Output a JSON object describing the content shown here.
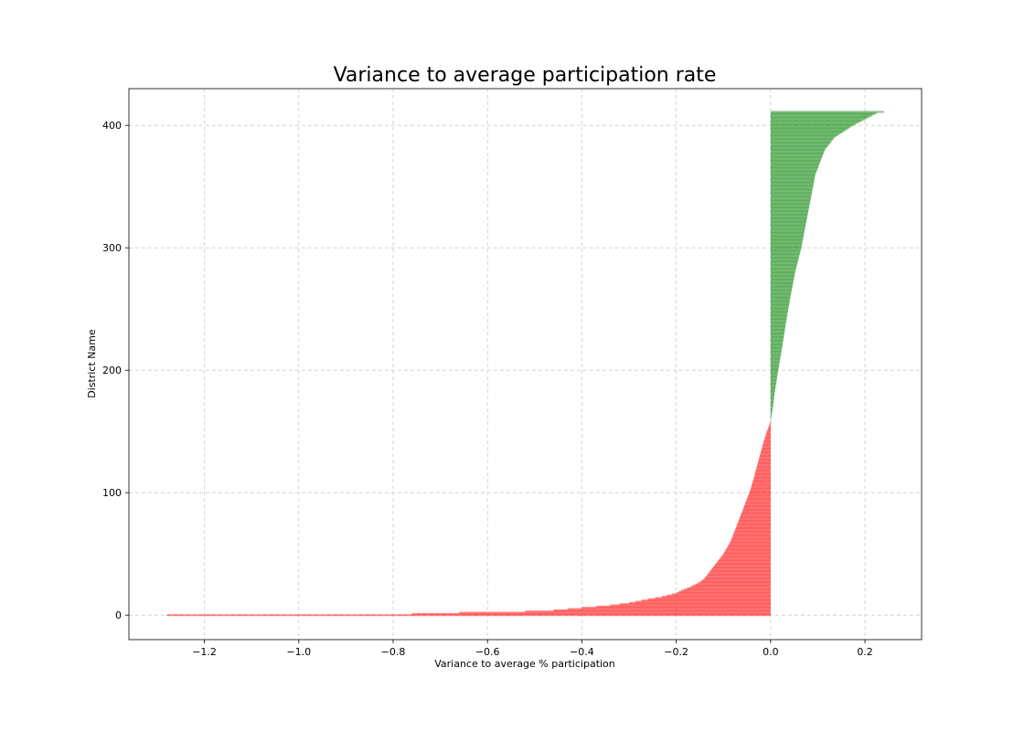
{
  "chart_data": {
    "type": "bar",
    "orientation": "horizontal",
    "title": "Variance to average participation rate",
    "xlabel": "Variance to average % participation",
    "ylabel": "District Name",
    "xlim": [
      -1.36,
      0.32
    ],
    "ylim": [
      -20,
      430
    ],
    "xticks": [
      -1.2,
      -1.0,
      -0.8,
      -0.6,
      -0.4,
      -0.2,
      0.0,
      0.2
    ],
    "xtick_labels": [
      "−1.2",
      "−1.0",
      "−0.8",
      "−0.6",
      "−0.4",
      "−0.2",
      "0.0",
      "0.2"
    ],
    "yticks": [
      0,
      100,
      200,
      300,
      400
    ],
    "ytick_labels": [
      "0",
      "100",
      "200",
      "300",
      "400"
    ],
    "grid": true,
    "n_bars": 412,
    "negative_color": "#ff0000",
    "positive_color": "#008000",
    "series": [
      {
        "name": "variance",
        "profile_index": [
          0,
          1,
          2,
          3,
          4,
          5,
          6,
          8,
          10,
          13,
          15,
          18,
          20,
          23,
          27,
          30,
          35,
          40,
          50,
          60,
          70,
          80,
          90,
          100,
          110,
          120,
          130,
          140,
          150,
          158,
          170,
          180,
          200,
          220,
          240,
          260,
          280,
          300,
          320,
          340,
          350,
          360,
          370,
          380,
          390,
          400,
          405,
          409,
          410,
          411
        ],
        "profile_value": [
          -1.28,
          -0.76,
          -0.66,
          -0.52,
          -0.46,
          -0.43,
          -0.4,
          -0.34,
          -0.3,
          -0.26,
          -0.23,
          -0.2,
          -0.19,
          -0.17,
          -0.15,
          -0.14,
          -0.13,
          -0.12,
          -0.1,
          -0.085,
          -0.075,
          -0.065,
          -0.055,
          -0.045,
          -0.037,
          -0.03,
          -0.023,
          -0.016,
          -0.008,
          0.0,
          0.005,
          0.008,
          0.016,
          0.025,
          0.033,
          0.042,
          0.052,
          0.065,
          0.075,
          0.085,
          0.09,
          0.095,
          0.105,
          0.115,
          0.135,
          0.175,
          0.2,
          0.22,
          0.225,
          0.24
        ]
      }
    ]
  }
}
